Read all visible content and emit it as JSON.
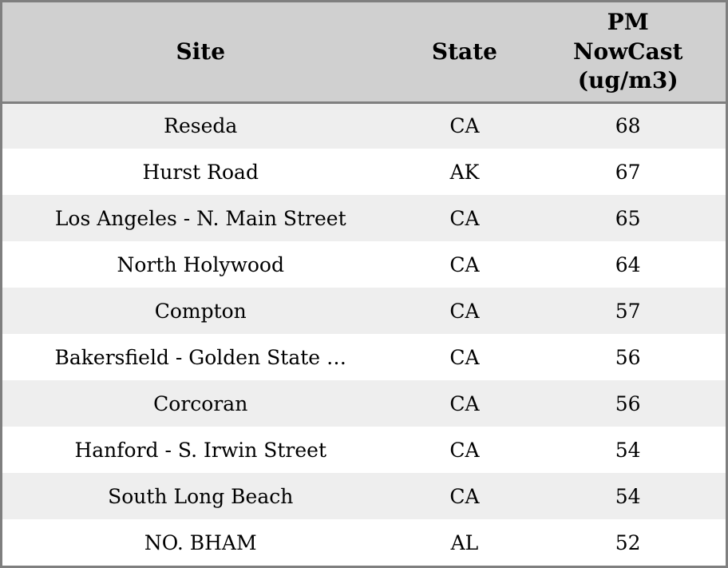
{
  "table": {
    "columns": [
      {
        "key": "site",
        "label": "Site"
      },
      {
        "key": "state",
        "label": "State"
      },
      {
        "key": "pm",
        "label": "PM\nNowCast\n(ug/m3)"
      }
    ],
    "rows": [
      {
        "site": "Reseda",
        "state": "CA",
        "pm": 68
      },
      {
        "site": "Hurst Road",
        "state": "AK",
        "pm": 67
      },
      {
        "site": "Los Angeles - N. Main Street",
        "state": "CA",
        "pm": 65
      },
      {
        "site": "North Holywood",
        "state": "CA",
        "pm": 64
      },
      {
        "site": "Compton",
        "state": "CA",
        "pm": 57
      },
      {
        "site": "Bakersfield - Golden State …",
        "state": "CA",
        "pm": 56
      },
      {
        "site": "Corcoran",
        "state": "CA",
        "pm": 56
      },
      {
        "site": "Hanford - S. Irwin Street",
        "state": "CA",
        "pm": 54
      },
      {
        "site": "South Long Beach",
        "state": "CA",
        "pm": 54
      },
      {
        "site": "NO. BHAM",
        "state": "AL",
        "pm": 52
      }
    ]
  },
  "chart_data": {
    "type": "table",
    "title": "",
    "columns": [
      "Site",
      "State",
      "PM NowCast (ug/m3)"
    ],
    "rows": [
      [
        "Reseda",
        "CA",
        68
      ],
      [
        "Hurst Road",
        "AK",
        67
      ],
      [
        "Los Angeles - N. Main Street",
        "CA",
        65
      ],
      [
        "North Holywood",
        "CA",
        64
      ],
      [
        "Compton",
        "CA",
        57
      ],
      [
        "Bakersfield - Golden State …",
        "CA",
        56
      ],
      [
        "Corcoran",
        "CA",
        56
      ],
      [
        "Hanford - S. Irwin Street",
        "CA",
        54
      ],
      [
        "South Long Beach",
        "CA",
        54
      ],
      [
        "NO. BHAM",
        "AL",
        52
      ]
    ],
    "layout_hints": {
      "header_position": "top",
      "row_striping": "odd rows shaded",
      "alignment": "center"
    }
  },
  "colors": {
    "header_background": "#d0d0d0",
    "stripe_row_background": "#eeeeee",
    "plain_row_background": "#ffffff",
    "border": "#7f7f7f",
    "text": "#000000"
  }
}
